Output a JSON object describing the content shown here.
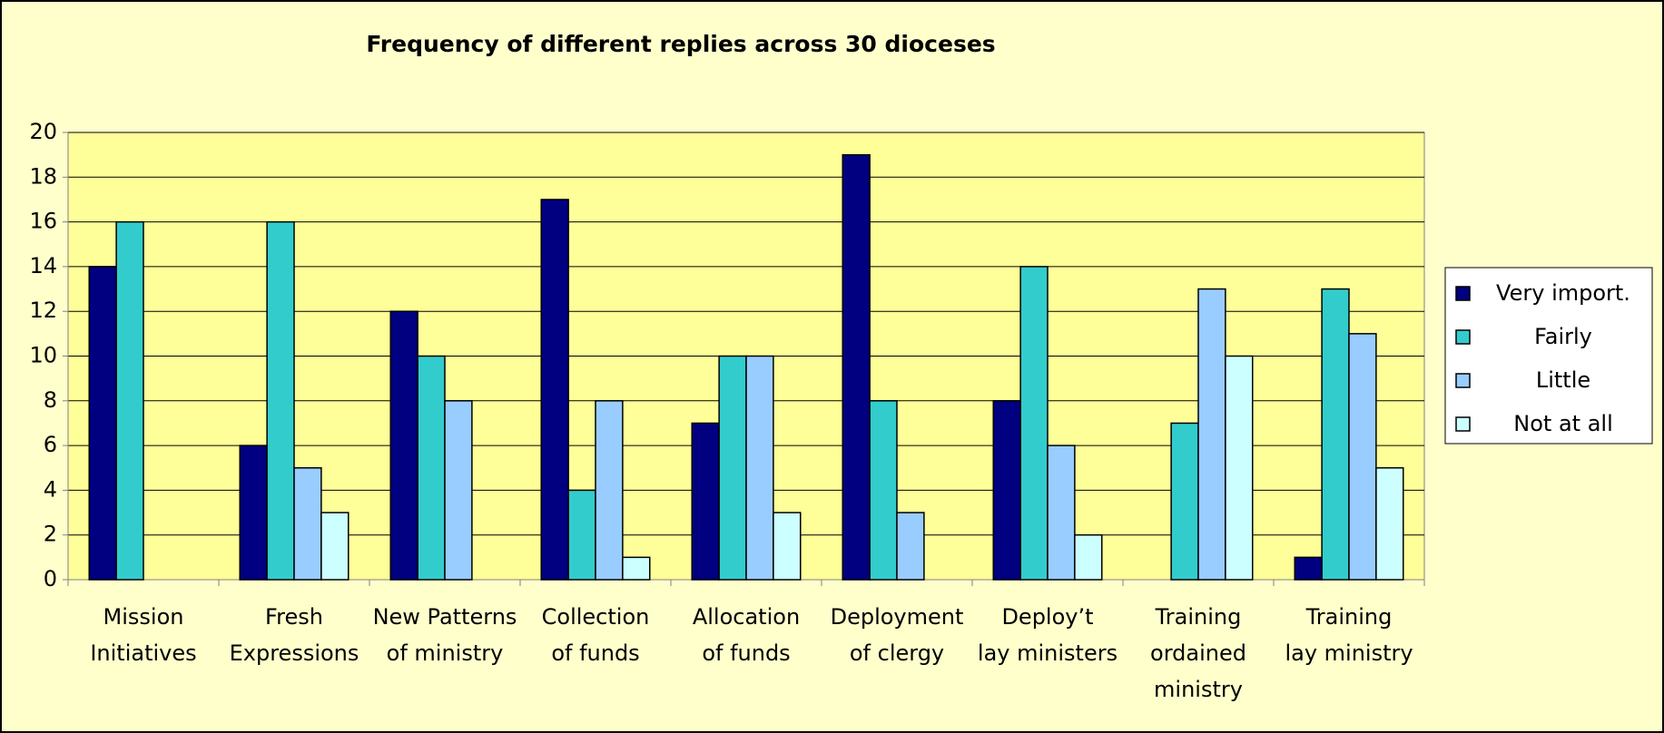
{
  "chart_data": {
    "type": "bar",
    "title": "Frequency of different replies across 30 dioceses",
    "categories": [
      [
        "Mission",
        "Initiatives"
      ],
      [
        "Fresh",
        "Expressions"
      ],
      [
        "New Patterns",
        "of ministry"
      ],
      [
        "Collection",
        "of funds"
      ],
      [
        "Allocation",
        "of funds"
      ],
      [
        "Deployment",
        "of clergy"
      ],
      [
        "Deploy’t",
        "lay ministers"
      ],
      [
        "Training",
        "ordained",
        "ministry"
      ],
      [
        "Training",
        "lay ministry"
      ]
    ],
    "series": [
      {
        "name": "Very import.",
        "color": "#000080",
        "values": [
          14,
          6,
          12,
          17,
          7,
          19,
          8,
          0,
          1
        ]
      },
      {
        "name": "Fairly",
        "color": "#33cccc",
        "values": [
          16,
          16,
          10,
          4,
          10,
          8,
          14,
          7,
          13
        ]
      },
      {
        "name": "Little",
        "color": "#99ccff",
        "values": [
          0,
          5,
          8,
          8,
          10,
          3,
          6,
          13,
          11
        ]
      },
      {
        "name": "Not at all",
        "color": "#ccffff",
        "values": [
          0,
          3,
          0,
          1,
          3,
          0,
          2,
          10,
          5
        ]
      }
    ],
    "ylim": [
      0,
      20
    ],
    "yticks": [
      0,
      2,
      4,
      6,
      8,
      10,
      12,
      14,
      16,
      18,
      20
    ],
    "grid": true,
    "legend": "right"
  }
}
